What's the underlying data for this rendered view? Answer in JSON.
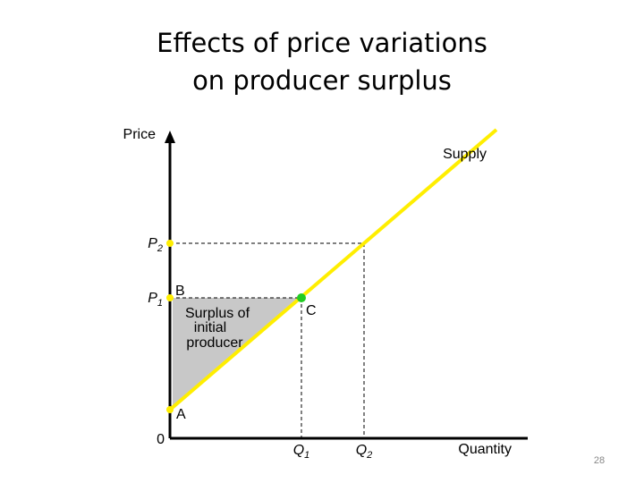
{
  "title": [
    "Effects of price variations",
    "on producer surplus"
  ],
  "axes": {
    "y_label": "Price",
    "x_label": "Quantity",
    "origin": "0"
  },
  "curve": {
    "label": "Supply"
  },
  "prices": [
    {
      "base": "P",
      "sub": "2"
    },
    {
      "base": "P",
      "sub": "1"
    }
  ],
  "quantities": [
    {
      "base": "Q",
      "sub": "1"
    },
    {
      "base": "Q",
      "sub": "2"
    }
  ],
  "points": {
    "a": "A",
    "b": "B",
    "c": "C"
  },
  "surplus_label": [
    "Surplus of",
    "initial",
    "producer"
  ],
  "page_number": "28"
}
